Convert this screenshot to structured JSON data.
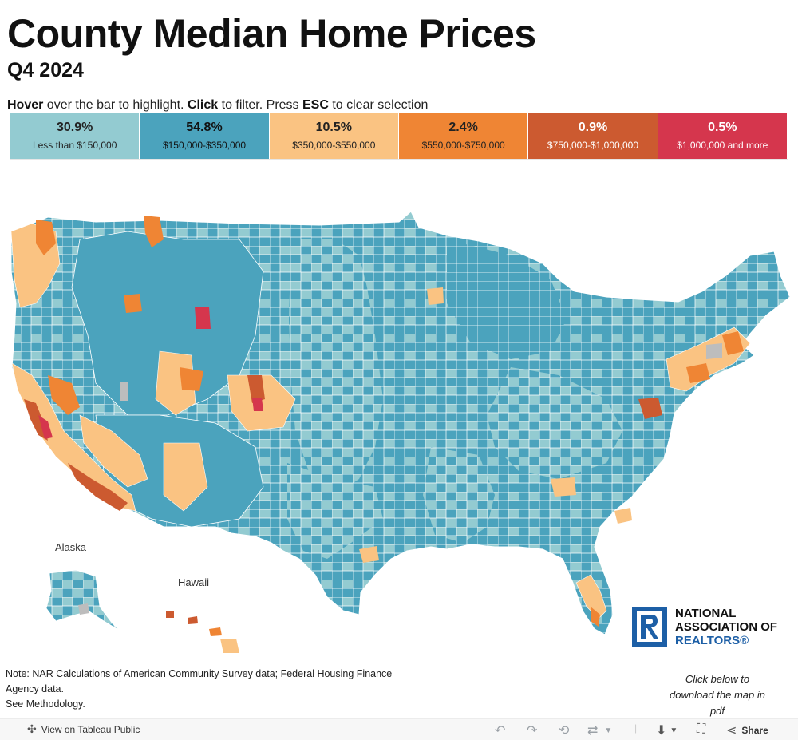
{
  "header": {
    "title": "County Median Home Prices",
    "subtitle": "Q4 2024"
  },
  "instructions": {
    "hover_word": "Hover",
    "hover_rest": " over the bar to highlight. ",
    "click_word": "Click",
    "click_rest": " to filter. Press ",
    "esc_word": "ESC",
    "esc_rest": " to clear selection"
  },
  "legend": [
    {
      "pct": "30.9%",
      "range": "Less than $150,000",
      "color": "#93cbd1",
      "text_color": "#222222"
    },
    {
      "pct": "54.8%",
      "range": "$150,000-$350,000",
      "color": "#4ba3bd",
      "text_color": "#111111"
    },
    {
      "pct": "10.5%",
      "range": "$350,000-$550,000",
      "color": "#fac382",
      "text_color": "#222222"
    },
    {
      "pct": "2.4%",
      "range": "$550,000-$750,000",
      "color": "#ef8534",
      "text_color": "#222222"
    },
    {
      "pct": "0.9%",
      "range": "$750,000-$1,000,000",
      "color": "#cc5a30",
      "text_color": "#ffffff"
    },
    {
      "pct": "0.5%",
      "range": "$1,000,000 and more",
      "color": "#d5364d",
      "text_color": "#ffffff"
    }
  ],
  "map": {
    "alaska_label": "Alaska",
    "hawaii_label": "Hawaii",
    "no_data_color": "#bdbdbd"
  },
  "logo": {
    "line1": "NATIONAL",
    "line2": "ASSOCIATION OF",
    "line3": "REALTORS®",
    "brand_color": "#1d5fa6"
  },
  "note": {
    "line1": "Note: NAR Calculations of American Community Survey data; Federal Housing Finance",
    "line2": "Agency data.",
    "line3": "See Methodology."
  },
  "download": {
    "line1": "Click below to",
    "line2": "download the map in",
    "line3": "pdf"
  },
  "footer": {
    "view_label": "View on Tableau Public",
    "share_label": "Share"
  }
}
